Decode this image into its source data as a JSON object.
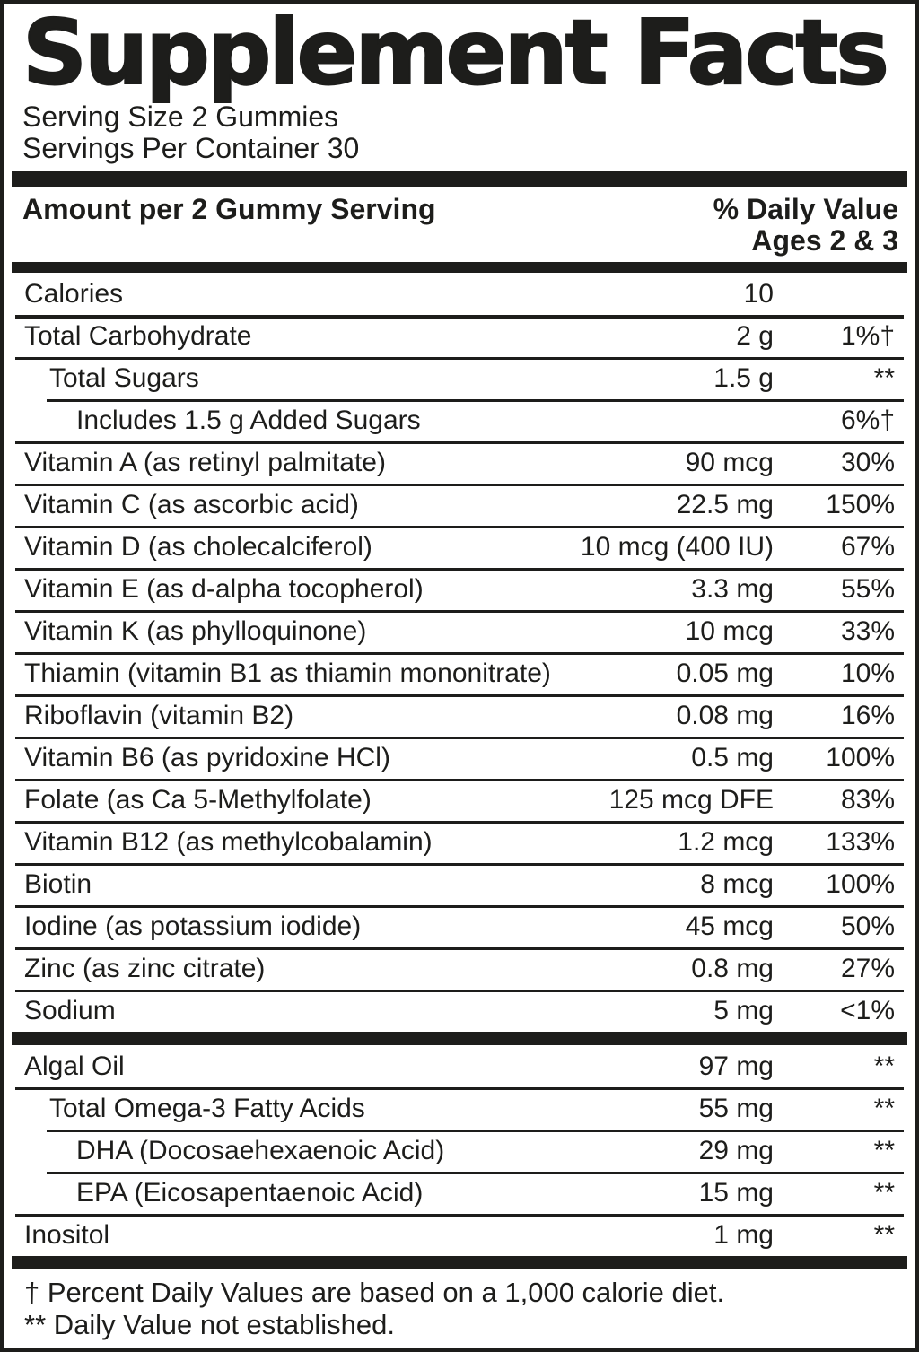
{
  "colors": {
    "ink": "#1d1d1b",
    "paper": "#ffffff"
  },
  "title": "Supplement Facts",
  "serving_info": {
    "serving_size": "Serving Size 2 Gummies",
    "servings_per_container": "Servings Per Container 30"
  },
  "columns": {
    "amount_header": "Amount per 2 Gummy Serving",
    "daily_value_header_line1": "% Daily Value",
    "daily_value_header_line2": "Ages 2 & 3"
  },
  "nutrients": [
    {
      "label": "Calories",
      "amount": "10",
      "dv": "",
      "indent": 0,
      "rule": "none"
    },
    {
      "label": "Total Carbohydrate",
      "amount": "2 g",
      "dv": "1%†",
      "indent": 0,
      "rule": "medium"
    },
    {
      "label": "Total Sugars",
      "amount": "1.5 g",
      "dv": "**",
      "indent": 1,
      "rule": "full"
    },
    {
      "label": "Includes 1.5 g Added Sugars",
      "amount": "",
      "dv": "6%†",
      "indent": 2,
      "rule": "indent"
    },
    {
      "label": "Vitamin A (as retinyl palmitate)",
      "amount": "90 mcg",
      "dv": "30%",
      "indent": 0,
      "rule": "full"
    },
    {
      "label": "Vitamin C (as ascorbic acid)",
      "amount": "22.5 mg",
      "dv": "150%",
      "indent": 0,
      "rule": "full"
    },
    {
      "label": "Vitamin D (as cholecalciferol)",
      "amount": "10 mcg (400 IU)",
      "dv": "67%",
      "indent": 0,
      "rule": "full"
    },
    {
      "label": "Vitamin E (as d-alpha tocopherol)",
      "amount": "3.3 mg",
      "dv": "55%",
      "indent": 0,
      "rule": "full"
    },
    {
      "label": "Vitamin K (as phylloquinone)",
      "amount": "10 mcg",
      "dv": "33%",
      "indent": 0,
      "rule": "full"
    },
    {
      "label": "Thiamin (vitamin B1 as thiamin mononitrate)",
      "amount": "0.05 mg",
      "dv": "10%",
      "indent": 0,
      "rule": "full"
    },
    {
      "label": "Riboflavin (vitamin B2)",
      "amount": "0.08 mg",
      "dv": "16%",
      "indent": 0,
      "rule": "full"
    },
    {
      "label": "Vitamin B6 (as pyridoxine HCl)",
      "amount": "0.5 mg",
      "dv": "100%",
      "indent": 0,
      "rule": "full"
    },
    {
      "label": "Folate (as Ca 5-Methylfolate)",
      "amount": "125 mcg DFE",
      "dv": "83%",
      "indent": 0,
      "rule": "full"
    },
    {
      "label": "Vitamin B12 (as methylcobalamin)",
      "amount": "1.2 mcg",
      "dv": "133%",
      "indent": 0,
      "rule": "full"
    },
    {
      "label": "Biotin",
      "amount": "8 mcg",
      "dv": "100%",
      "indent": 0,
      "rule": "full"
    },
    {
      "label": "Iodine (as potassium iodide)",
      "amount": "45 mcg",
      "dv": "50%",
      "indent": 0,
      "rule": "full"
    },
    {
      "label": "Zinc (as zinc citrate)",
      "amount": "0.8 mg",
      "dv": "27%",
      "indent": 0,
      "rule": "full"
    },
    {
      "label": "Sodium",
      "amount": "5 mg",
      "dv": "<1%",
      "indent": 0,
      "rule": "full"
    }
  ],
  "secondary_nutrients": [
    {
      "label": "Algal Oil",
      "amount": "97 mg",
      "dv": "**",
      "indent": 0,
      "rule": "none"
    },
    {
      "label": "Total Omega-3 Fatty Acids",
      "amount": "55 mg",
      "dv": "**",
      "indent": 1,
      "rule": "full"
    },
    {
      "label": "DHA (Docosaehexaenoic Acid)",
      "amount": "29 mg",
      "dv": "**",
      "indent": 2,
      "rule": "indent"
    },
    {
      "label": "EPA (Eicosapentaenoic Acid)",
      "amount": "15 mg",
      "dv": "**",
      "indent": 2,
      "rule": "indent"
    },
    {
      "label": "Inositol",
      "amount": "1 mg",
      "dv": "**",
      "indent": 0,
      "rule": "full"
    }
  ],
  "footnotes": [
    "† Percent Daily Values are based on a 1,000 calorie diet.",
    "** Daily Value not established."
  ]
}
